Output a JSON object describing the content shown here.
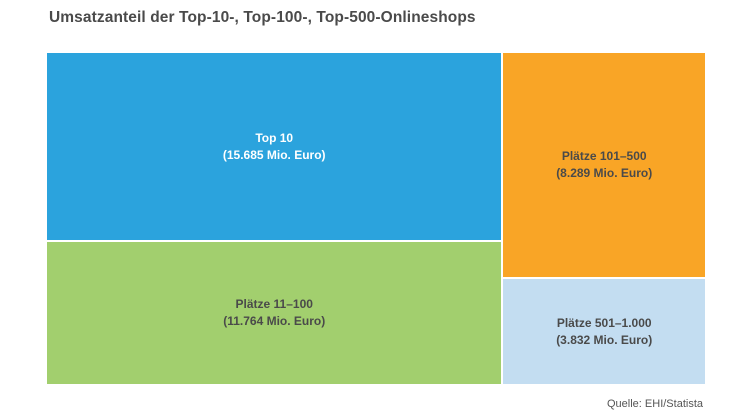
{
  "title": "Umsatzanteil der Top-10-, Top-100-, Top-500-Onlineshops",
  "source": "Quelle: EHI/Statista",
  "chart_data": {
    "type": "treemap",
    "title": "Umsatzanteil der Top-10-, Top-100-, Top-500-Onlineshops",
    "unit": "Mio. Euro",
    "items": [
      {
        "name": "Top 10",
        "value": 15685,
        "value_label": "(15.685 Mio. Euro)",
        "color": "#2ba3dd",
        "text_color": "#ffffff"
      },
      {
        "name": "Plätze 11–100",
        "value": 11764,
        "value_label": "(11.764 Mio. Euro)",
        "color": "#a2cf6e",
        "text_color": "#4a4a4a"
      },
      {
        "name": "Plätze 101–500",
        "value": 8289,
        "value_label": "(8.289 Mio. Euro)",
        "color": "#f9a526",
        "text_color": "#4a4a4a"
      },
      {
        "name": "Plätze 501–1.000",
        "value": 3832,
        "value_label": "(3.832 Mio. Euro)",
        "color": "#c3ddf1",
        "text_color": "#4a4a4a"
      }
    ]
  }
}
